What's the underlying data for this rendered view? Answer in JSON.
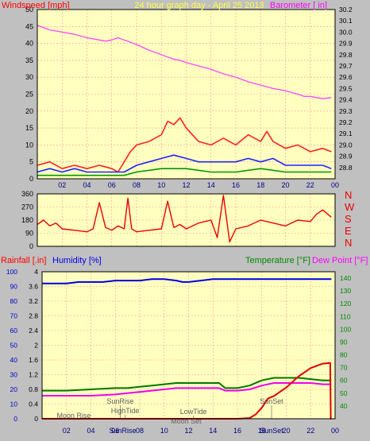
{
  "chart_data": [
    {
      "type": "line",
      "title": "24 hour graph day - April 25 2013",
      "left_axis_label": "Windspeed [mph]",
      "right_axis_label": "Barometer [ in]",
      "x_ticks": [
        "02",
        "04",
        "06",
        "08",
        "10",
        "12",
        "14",
        "16",
        "18",
        "20",
        "22",
        "00"
      ],
      "left_ylim": [
        0,
        50
      ],
      "left_ticks": [
        "0",
        "5",
        "10",
        "15",
        "20",
        "25",
        "30",
        "35",
        "40",
        "45",
        "50"
      ],
      "right_ylim": [
        28.7,
        30.2
      ],
      "right_ticks": [
        "28.8",
        "28.9",
        "29.0",
        "29.1",
        "29.2",
        "29.3",
        "29.4",
        "29.5",
        "29.6",
        "29.7",
        "29.8",
        "29.9",
        "30.0",
        "30.1",
        "30.2"
      ],
      "grid": true,
      "series": [
        {
          "role": "barometer",
          "color": "#ff44ff",
          "x": [
            0,
            1,
            2,
            3,
            4,
            5,
            5.5,
            6,
            6.5,
            7,
            8,
            9,
            10,
            11,
            11.5,
            12,
            13,
            14,
            15,
            16,
            17,
            18,
            19,
            20,
            21,
            21.5,
            22,
            22.5,
            23,
            23.7
          ],
          "y": [
            30.06,
            30.02,
            30.0,
            29.98,
            29.95,
            29.93,
            29.92,
            29.93,
            29.95,
            29.93,
            29.89,
            29.84,
            29.8,
            29.76,
            29.75,
            29.73,
            29.7,
            29.67,
            29.63,
            29.6,
            29.56,
            29.53,
            29.5,
            29.48,
            29.45,
            29.43,
            29.43,
            29.42,
            29.41,
            29.42
          ]
        },
        {
          "role": "wind-gust",
          "color": "#ff2222",
          "x": [
            0,
            1,
            2,
            3,
            4,
            5,
            6,
            6.5,
            7,
            7.5,
            8,
            9,
            10,
            10.5,
            11,
            11.5,
            12,
            13,
            14,
            15,
            16,
            17,
            18,
            18.5,
            19,
            20,
            21,
            22,
            23,
            23.7
          ],
          "y": [
            4,
            5,
            3,
            4,
            3,
            4,
            3,
            2,
            5,
            8,
            10,
            11,
            13,
            17,
            16,
            18,
            15,
            11,
            10,
            12,
            10,
            13,
            11,
            14,
            11,
            9,
            10,
            8,
            9,
            8
          ]
        },
        {
          "role": "wind-speed",
          "color": "#2222ff",
          "x": [
            0,
            1,
            2,
            3,
            4,
            5,
            6,
            7,
            8,
            9,
            10,
            11,
            12,
            13,
            14,
            15,
            16,
            17,
            18,
            19,
            20,
            21,
            22,
            23,
            23.7
          ],
          "y": [
            2,
            3,
            2,
            3,
            2,
            2,
            2,
            2,
            4,
            5,
            6,
            7,
            6,
            5,
            5,
            5,
            5,
            6,
            5,
            6,
            4,
            4,
            4,
            4,
            3
          ]
        },
        {
          "role": "wind-average",
          "color": "#009900",
          "x": [
            0,
            2,
            4,
            6,
            7,
            8,
            10,
            12,
            14,
            16,
            18,
            20,
            22,
            23.7
          ],
          "y": [
            1,
            1,
            1,
            1,
            1,
            2,
            3,
            3,
            2,
            2,
            3,
            2,
            2,
            2
          ]
        }
      ]
    },
    {
      "type": "line",
      "right_labels": [
        "N",
        "W",
        "S",
        "E",
        "N"
      ],
      "x_ticks": [
        "02",
        "04",
        "06",
        "08",
        "10",
        "12",
        "14",
        "16",
        "18",
        "20",
        "22",
        "00"
      ],
      "ylim": [
        0,
        360
      ],
      "y_ticks": [
        "0",
        "90",
        "180",
        "270",
        "360"
      ],
      "grid": true,
      "series": [
        {
          "role": "wind-direction",
          "color": "#ee0000",
          "x": [
            0,
            0.5,
            1,
            1.5,
            2,
            3,
            4,
            4.5,
            5,
            5.5,
            6,
            6.5,
            7,
            7.3,
            7.6,
            8,
            9,
            10,
            10.5,
            11,
            11.5,
            12,
            13,
            14,
            14.5,
            15,
            15.5,
            16,
            17,
            18,
            19,
            20,
            21,
            22,
            22.5,
            23,
            23.7
          ],
          "y": [
            150,
            180,
            140,
            160,
            120,
            110,
            100,
            120,
            300,
            130,
            110,
            140,
            120,
            330,
            120,
            100,
            110,
            120,
            310,
            130,
            150,
            120,
            160,
            180,
            60,
            350,
            30,
            120,
            140,
            180,
            160,
            140,
            180,
            170,
            220,
            250,
            200
          ]
        }
      ]
    },
    {
      "type": "line",
      "left_axis_label": "Rainfall [.in]",
      "mid_axis_label": "Humidity [%]",
      "right_axis_label_1": "Temperature [°F]",
      "right_axis_label_2": "Dew Point [°F]",
      "x_ticks": [
        "02",
        "04",
        "06",
        "08",
        "10",
        "12",
        "14",
        "16",
        "18",
        "20",
        "22",
        "00"
      ],
      "rain_ylim": [
        0,
        4.0
      ],
      "rain_ticks": [
        "0",
        "0.4",
        "0.8",
        "1.2",
        "1.6",
        "2",
        "2.4",
        "2.8",
        "3.2",
        "3.6",
        "4"
      ],
      "humidity_ylim": [
        0,
        100
      ],
      "humidity_ticks": [
        "0",
        "10",
        "20",
        "30",
        "40",
        "50",
        "60",
        "70",
        "80",
        "90",
        "100"
      ],
      "temp_ylim": [
        30,
        145
      ],
      "temp_ticks": [
        "40",
        "50",
        "60",
        "70",
        "80",
        "90",
        "100",
        "110",
        "120",
        "130",
        "140"
      ],
      "grid": true,
      "annotations_top": [
        "SunRise",
        "HighTide",
        "LowTide",
        "SunSet"
      ],
      "annotations_bottom": [
        "Moon Rise",
        "Moon Set"
      ],
      "bottom_marks": [
        "SunRise",
        "SunSet"
      ],
      "series": [
        {
          "role": "humidity",
          "color": "#0000dd",
          "x": [
            0,
            1,
            2,
            3,
            4,
            5,
            6,
            7,
            8,
            9,
            10,
            11,
            11.5,
            12,
            13,
            14,
            15,
            16,
            17,
            18,
            19,
            20,
            21,
            22,
            23,
            23.7
          ],
          "y": [
            92,
            92,
            92,
            93,
            93,
            93,
            94,
            94,
            94,
            95,
            95,
            94,
            93,
            93,
            94,
            95,
            95,
            95,
            95,
            95,
            95,
            95,
            95,
            95,
            95,
            95
          ]
        },
        {
          "role": "temperature",
          "color": "#007700",
          "x": [
            0,
            2,
            4,
            6,
            7,
            8,
            9,
            10,
            11,
            12,
            13,
            14,
            14.5,
            15,
            15.5,
            16,
            17,
            18,
            19,
            20,
            21,
            22,
            23,
            23.7
          ],
          "y": [
            52,
            52,
            53,
            54,
            54,
            55,
            56,
            57,
            58,
            58,
            58,
            58,
            58,
            54,
            54,
            54,
            56,
            60,
            62,
            62,
            62,
            61,
            60,
            60
          ]
        },
        {
          "role": "dew-point",
          "color": "#ee00ee",
          "x": [
            0,
            2,
            4,
            6,
            7,
            8,
            9,
            10,
            11,
            12,
            13,
            14,
            14.5,
            15,
            16,
            17,
            18,
            19,
            20,
            21,
            22,
            23,
            23.7
          ],
          "y": [
            48,
            48,
            48,
            49,
            50,
            51,
            52,
            53,
            54,
            54,
            54,
            54,
            54,
            52,
            52,
            53,
            56,
            58,
            58,
            58,
            58,
            57,
            57
          ]
        },
        {
          "role": "rainfall",
          "color": "#dd0000",
          "x": [
            0,
            2,
            4,
            6,
            8,
            10,
            12,
            14,
            16,
            17,
            17.5,
            18,
            18.5,
            19,
            20,
            21,
            22,
            23,
            23.6,
            23.65,
            23.7
          ],
          "y": [
            0,
            0,
            0,
            0,
            0,
            0,
            0,
            0,
            0,
            0.02,
            0.12,
            0.3,
            0.55,
            0.62,
            0.85,
            1.15,
            1.38,
            1.5,
            1.52,
            0,
            0
          ]
        }
      ]
    }
  ]
}
